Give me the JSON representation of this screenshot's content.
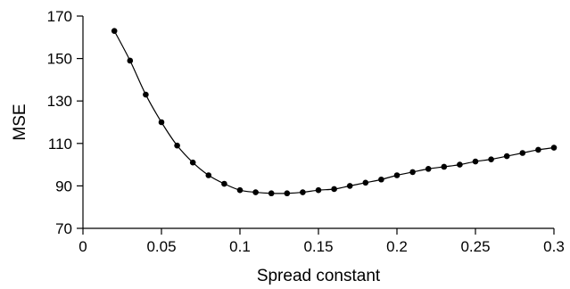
{
  "chart_data": {
    "type": "line",
    "title": "",
    "xlabel": "Spread constant",
    "ylabel": "MSE",
    "xlim": [
      0,
      0.3
    ],
    "ylim": [
      70,
      170
    ],
    "xticks": [
      0,
      0.05,
      0.1,
      0.15,
      0.2,
      0.25,
      0.3
    ],
    "xtick_labels": [
      "0",
      "0.05",
      "0.1",
      "0.15",
      "0.2",
      "0.25",
      "0.3"
    ],
    "yticks": [
      70,
      90,
      110,
      130,
      150,
      170
    ],
    "ytick_labels": [
      "70",
      "90",
      "110",
      "130",
      "150",
      "170"
    ],
    "grid": false,
    "series": [
      {
        "marker": "filled-circle",
        "color": "#000000",
        "x": [
          0.02,
          0.03,
          0.04,
          0.05,
          0.06,
          0.07,
          0.08,
          0.09,
          0.1,
          0.11,
          0.12,
          0.13,
          0.14,
          0.15,
          0.16,
          0.17,
          0.18,
          0.19,
          0.2,
          0.21,
          0.22,
          0.23,
          0.24,
          0.25,
          0.26,
          0.27,
          0.28,
          0.29,
          0.3
        ],
        "y": [
          163,
          149,
          133,
          120,
          109,
          101,
          95,
          91,
          88,
          87,
          86.5,
          86.5,
          87,
          88,
          88.5,
          90,
          91.5,
          93,
          95,
          96.5,
          98,
          99,
          100,
          101.5,
          102.5,
          104,
          105.5,
          107,
          108
        ]
      }
    ]
  }
}
